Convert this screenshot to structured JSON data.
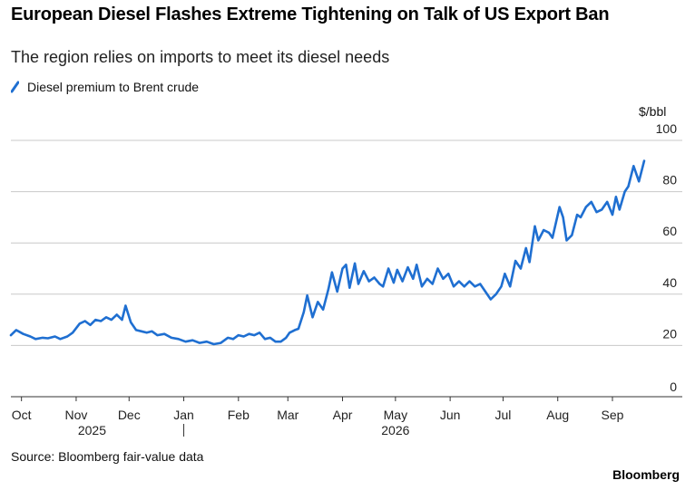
{
  "title": "European Diesel Flashes Extreme Tightening on Talk of US Export Ban",
  "subtitle": "The region relies on imports to meet its diesel needs",
  "source": "Source: Bloomberg fair-value data",
  "brand": "Bloomberg",
  "colors": {
    "line": "#1f6fd1",
    "grid": "#c8c8c8",
    "axis": "#333333"
  },
  "chart_data": {
    "type": "line",
    "title": "European Diesel Flashes Extreme Tightening on Talk of US Export Ban",
    "subtitle": "The region relies on imports to meet its diesel needs",
    "ylabel": "$/bbl",
    "ylim": [
      0,
      100
    ],
    "yticks": [
      0,
      20,
      40,
      60,
      80,
      100
    ],
    "y_axis_side": "right",
    "grid": "horizontal",
    "legend_placement": "top-left",
    "x_range": [
      "2025-09-25",
      "2026-10-07"
    ],
    "x_tick_labels": [
      {
        "date": "2025-10-01",
        "label": "Oct"
      },
      {
        "date": "2025-11-01",
        "label": "Nov"
      },
      {
        "date": "2025-12-01",
        "label": "Dec"
      },
      {
        "date": "2026-01-01",
        "label": "Jan"
      },
      {
        "date": "2026-02-01",
        "label": "Feb"
      },
      {
        "date": "2026-03-01",
        "label": "Mar"
      },
      {
        "date": "2026-04-01",
        "label": "Apr"
      },
      {
        "date": "2026-05-01",
        "label": "May"
      },
      {
        "date": "2026-06-01",
        "label": "Jun"
      },
      {
        "date": "2026-07-01",
        "label": "Jul"
      },
      {
        "date": "2026-08-01",
        "label": "Aug"
      },
      {
        "date": "2026-09-01",
        "label": "Sep"
      }
    ],
    "year_labels": [
      {
        "date": "2025-11-10",
        "label": "2025"
      },
      {
        "date": "2026-05-01",
        "label": "2026"
      }
    ],
    "series": [
      {
        "name": "Diesel premium to Brent crude",
        "color": "#1f6fd1",
        "points": [
          [
            "2025-09-25",
            24
          ],
          [
            "2025-09-28",
            26
          ],
          [
            "2025-10-02",
            24.5
          ],
          [
            "2025-10-06",
            23.5
          ],
          [
            "2025-10-09",
            22.5
          ],
          [
            "2025-10-13",
            23
          ],
          [
            "2025-10-16",
            22.8
          ],
          [
            "2025-10-20",
            23.5
          ],
          [
            "2025-10-23",
            22.5
          ],
          [
            "2025-10-27",
            23.5
          ],
          [
            "2025-10-30",
            25
          ],
          [
            "2025-11-03",
            28.5
          ],
          [
            "2025-11-06",
            29.5
          ],
          [
            "2025-11-09",
            28
          ],
          [
            "2025-11-12",
            30
          ],
          [
            "2025-11-15",
            29.5
          ],
          [
            "2025-11-18",
            31
          ],
          [
            "2025-11-21",
            30
          ],
          [
            "2025-11-24",
            32
          ],
          [
            "2025-11-27",
            30
          ],
          [
            "2025-11-29",
            35.5
          ],
          [
            "2025-12-02",
            29
          ],
          [
            "2025-12-05",
            26
          ],
          [
            "2025-12-08",
            25.5
          ],
          [
            "2025-12-11",
            25
          ],
          [
            "2025-12-14",
            25.5
          ],
          [
            "2025-12-17",
            24
          ],
          [
            "2025-12-21",
            24.5
          ],
          [
            "2025-12-25",
            23
          ],
          [
            "2025-12-29",
            22.5
          ],
          [
            "2026-01-02",
            21.5
          ],
          [
            "2026-01-06",
            22
          ],
          [
            "2026-01-10",
            21
          ],
          [
            "2026-01-14",
            21.5
          ],
          [
            "2026-01-18",
            20.5
          ],
          [
            "2026-01-22",
            21
          ],
          [
            "2026-01-26",
            23
          ],
          [
            "2026-01-29",
            22.5
          ],
          [
            "2026-02-01",
            24
          ],
          [
            "2026-02-04",
            23.5
          ],
          [
            "2026-02-07",
            24.5
          ],
          [
            "2026-02-10",
            24
          ],
          [
            "2026-02-13",
            25
          ],
          [
            "2026-02-16",
            22.5
          ],
          [
            "2026-02-19",
            23
          ],
          [
            "2026-02-22",
            21.5
          ],
          [
            "2026-02-25",
            21.5
          ],
          [
            "2026-02-28",
            23
          ],
          [
            "2026-03-02",
            25
          ],
          [
            "2026-03-05",
            26
          ],
          [
            "2026-03-07",
            26.5
          ],
          [
            "2026-03-10",
            33
          ],
          [
            "2026-03-12",
            39.5
          ],
          [
            "2026-03-15",
            31
          ],
          [
            "2026-03-18",
            37
          ],
          [
            "2026-03-21",
            34
          ],
          [
            "2026-03-24",
            42
          ],
          [
            "2026-03-26",
            48.5
          ],
          [
            "2026-03-29",
            41
          ],
          [
            "2026-04-01",
            50
          ],
          [
            "2026-04-03",
            51.5
          ],
          [
            "2026-04-05",
            42.5
          ],
          [
            "2026-04-08",
            52
          ],
          [
            "2026-04-10",
            44
          ],
          [
            "2026-04-13",
            49
          ],
          [
            "2026-04-16",
            45
          ],
          [
            "2026-04-19",
            46.5
          ],
          [
            "2026-04-22",
            44
          ],
          [
            "2026-04-24",
            43
          ],
          [
            "2026-04-27",
            50
          ],
          [
            "2026-04-30",
            44.5
          ],
          [
            "2026-05-02",
            49.5
          ],
          [
            "2026-05-05",
            45
          ],
          [
            "2026-05-08",
            50.5
          ],
          [
            "2026-05-11",
            46
          ],
          [
            "2026-05-13",
            51.5
          ],
          [
            "2026-05-16",
            43
          ],
          [
            "2026-05-19",
            46
          ],
          [
            "2026-05-22",
            44
          ],
          [
            "2026-05-25",
            50
          ],
          [
            "2026-05-28",
            46
          ],
          [
            "2026-05-31",
            48
          ],
          [
            "2026-06-03",
            43
          ],
          [
            "2026-06-06",
            45
          ],
          [
            "2026-06-09",
            43
          ],
          [
            "2026-06-12",
            45
          ],
          [
            "2026-06-15",
            43
          ],
          [
            "2026-06-18",
            44
          ],
          [
            "2026-06-21",
            41
          ],
          [
            "2026-06-24",
            38
          ],
          [
            "2026-06-27",
            40
          ],
          [
            "2026-06-30",
            43
          ],
          [
            "2026-07-02",
            48
          ],
          [
            "2026-07-05",
            43
          ],
          [
            "2026-07-08",
            53
          ],
          [
            "2026-07-11",
            50
          ],
          [
            "2026-07-14",
            58
          ],
          [
            "2026-07-16",
            52.5
          ],
          [
            "2026-07-19",
            66.5
          ],
          [
            "2026-07-21",
            61
          ],
          [
            "2026-07-24",
            65
          ],
          [
            "2026-07-27",
            64
          ],
          [
            "2026-07-29",
            62
          ],
          [
            "2026-07-31",
            68
          ],
          [
            "2026-08-02",
            74
          ],
          [
            "2026-08-04",
            70
          ],
          [
            "2026-08-06",
            61
          ],
          [
            "2026-08-09",
            63
          ],
          [
            "2026-08-12",
            71
          ],
          [
            "2026-08-14",
            70
          ],
          [
            "2026-08-17",
            74
          ],
          [
            "2026-08-20",
            76
          ],
          [
            "2026-08-23",
            72
          ],
          [
            "2026-08-26",
            73
          ],
          [
            "2026-08-29",
            76
          ],
          [
            "2026-09-01",
            71
          ],
          [
            "2026-09-03",
            78
          ],
          [
            "2026-09-05",
            73
          ],
          [
            "2026-09-08",
            80
          ],
          [
            "2026-09-10",
            82
          ],
          [
            "2026-09-13",
            90
          ],
          [
            "2026-09-16",
            84
          ],
          [
            "2026-09-19",
            92
          ]
        ]
      }
    ],
    "axis_unit_label": "$/bbl",
    "source_note": "Source: Bloomberg fair-value data"
  }
}
